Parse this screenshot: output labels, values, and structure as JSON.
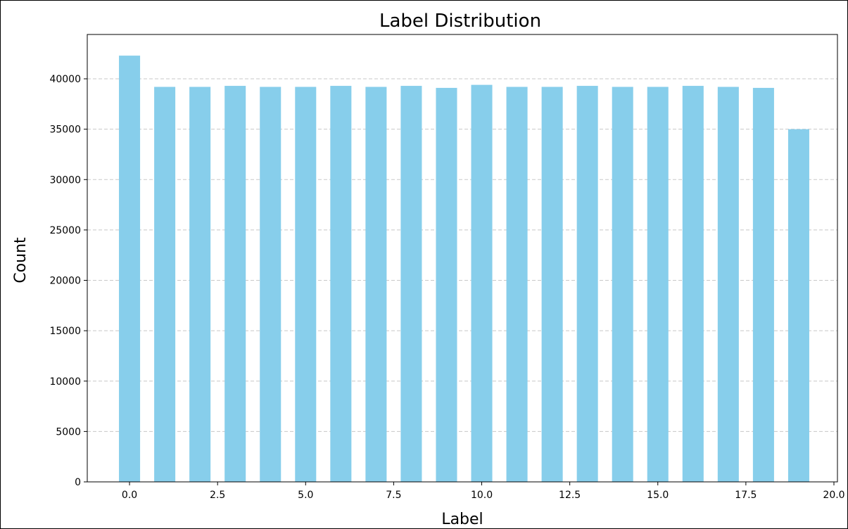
{
  "chart_data": {
    "type": "bar",
    "title": "Label Distribution",
    "xlabel": "Label",
    "ylabel": "Count",
    "categories": [
      0,
      1,
      2,
      3,
      4,
      5,
      6,
      7,
      8,
      9,
      10,
      11,
      12,
      13,
      14,
      15,
      16,
      17,
      18,
      19
    ],
    "values": [
      42300,
      39200,
      39200,
      39300,
      39200,
      39200,
      39300,
      39200,
      39300,
      39100,
      39400,
      39200,
      39200,
      39300,
      39200,
      39200,
      39300,
      39200,
      39100,
      35000
    ],
    "bar_width": 0.6,
    "xlim": [
      -1.2,
      20.1
    ],
    "ylim": [
      0,
      44400
    ],
    "xticks": [
      0.0,
      2.5,
      5.0,
      7.5,
      10.0,
      12.5,
      15.0,
      17.5,
      20.0
    ],
    "xtick_labels": [
      "0.0",
      "2.5",
      "5.0",
      "7.5",
      "10.0",
      "12.5",
      "15.0",
      "17.5",
      "20.0"
    ],
    "yticks": [
      0,
      5000,
      10000,
      15000,
      20000,
      25000,
      30000,
      35000,
      40000
    ],
    "ytick_labels": [
      "0",
      "5000",
      "10000",
      "15000",
      "20000",
      "25000",
      "30000",
      "35000",
      "40000"
    ],
    "grid": "y-dashed",
    "bar_color": "#87CEEB",
    "grid_color": "#c8c8c8",
    "axis_color": "#000000"
  }
}
